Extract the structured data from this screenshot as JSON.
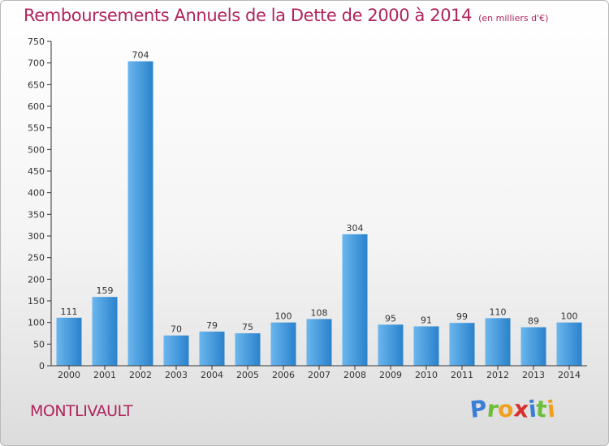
{
  "header": {
    "title": "Remboursements Annuels de la Dette de 2000 à 2014",
    "subtitle": "(en milliers d'€)"
  },
  "footer": {
    "commune": "MONTLIVAULT",
    "logo_letters": [
      "P",
      "r",
      "o",
      "x",
      "i",
      "t",
      "i"
    ],
    "logo_colors": [
      "#3a7fd5",
      "#6bbf3a",
      "#f0a020",
      "#d83030",
      "#3a7fd5",
      "#6bbf3a",
      "#f0a020"
    ]
  },
  "colors": {
    "bar_light": "#6ab6ee",
    "bar_dark": "#2a82cc",
    "axis": "#333333",
    "grid": "#cccccc",
    "title": "#b0245c"
  },
  "chart_data": {
    "type": "bar",
    "title": "Remboursements Annuels de la Dette de 2000 à 2014",
    "xlabel": "",
    "ylabel": "",
    "categories": [
      "2000",
      "2001",
      "2002",
      "2003",
      "2004",
      "2005",
      "2006",
      "2007",
      "2008",
      "2009",
      "2010",
      "2011",
      "2012",
      "2013",
      "2014"
    ],
    "values": [
      111,
      159,
      704,
      70,
      79,
      75,
      100,
      108,
      304,
      95,
      91,
      99,
      110,
      89,
      100
    ],
    "ylim": [
      0,
      750
    ],
    "yticks": [
      0,
      50,
      100,
      150,
      200,
      250,
      300,
      350,
      400,
      450,
      500,
      550,
      600,
      650,
      700,
      750
    ],
    "grid": false,
    "legend": "none"
  }
}
